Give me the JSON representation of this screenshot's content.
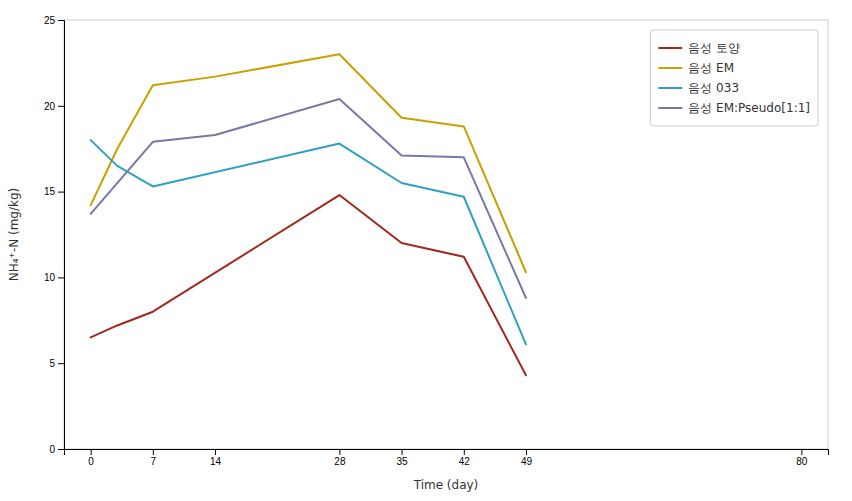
{
  "chart_data": {
    "type": "line",
    "xlabel": "Time (day)",
    "ylabel": "NH₄⁺-N (mg/kg)",
    "xlim": [
      -3,
      83
    ],
    "ylim": [
      0,
      25
    ],
    "xticks": [
      0,
      7,
      14,
      28,
      35,
      42,
      49,
      80
    ],
    "yticks": [
      0,
      5,
      10,
      15,
      20,
      25
    ],
    "grid": false,
    "legend": "upper right",
    "series": [
      {
        "name": "음성 토양",
        "color": "#a0291e",
        "x": [
          0,
          3,
          7,
          28,
          35,
          42,
          49
        ],
        "values": [
          6.5,
          7.2,
          8.0,
          14.8,
          12.0,
          11.2,
          4.3
        ]
      },
      {
        "name": "음성 EM",
        "color": "#c8a000",
        "x": [
          0,
          3,
          7,
          14,
          28,
          35,
          42,
          49
        ],
        "values": [
          14.2,
          17.5,
          21.2,
          21.7,
          23.0,
          19.3,
          18.8,
          10.3
        ]
      },
      {
        "name": "음성 033",
        "color": "#2fa0c0",
        "x": [
          0,
          3,
          7,
          28,
          35,
          42,
          49
        ],
        "values": [
          18.0,
          16.5,
          15.3,
          17.8,
          15.5,
          14.7,
          6.1
        ]
      },
      {
        "name": "음성 EM:Pseudo[1:1]",
        "color": "#7878a8",
        "x": [
          0,
          7,
          14,
          28,
          35,
          42,
          49
        ],
        "values": [
          13.7,
          17.9,
          18.3,
          20.4,
          17.1,
          17.0,
          8.8
        ]
      }
    ]
  }
}
